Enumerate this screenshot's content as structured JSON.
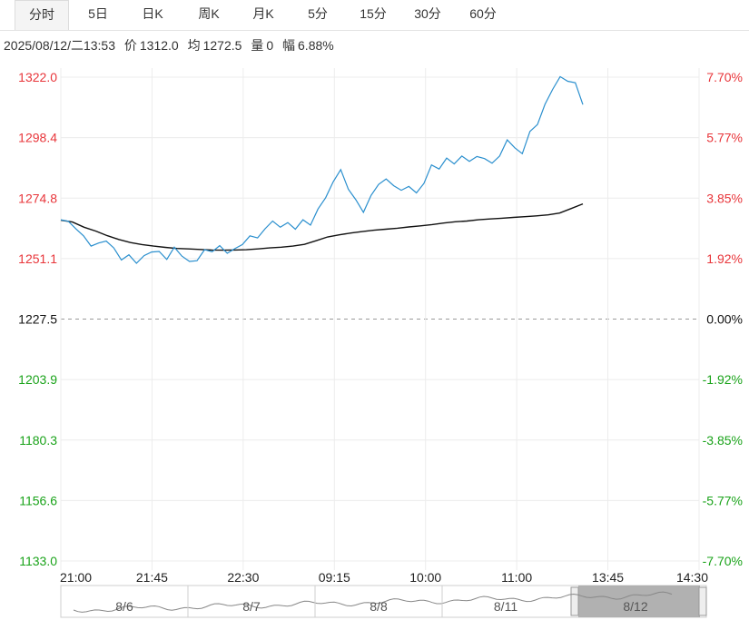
{
  "tabs": [
    {
      "label": "分时",
      "active": true
    },
    {
      "label": "5日"
    },
    {
      "label": "日K"
    },
    {
      "label": "周K"
    },
    {
      "label": "月K"
    },
    {
      "label": "5分"
    },
    {
      "label": "15分"
    },
    {
      "label": "30分"
    },
    {
      "label": "60分"
    }
  ],
  "info": {
    "datetime": "2025/08/12/二13:53",
    "price_label": "价",
    "price": "1312.0",
    "avg_label": "均",
    "avg": "1272.5",
    "volume_label": "量",
    "volume": "0",
    "amplitude_label": "幅",
    "amplitude": "6.88%"
  },
  "colors": {
    "up": "#e8353a",
    "down": "#1aa31a",
    "price_line": "#2a8fce",
    "avg_line": "#111111",
    "grid": "#ececec"
  },
  "chart_data": {
    "type": "line",
    "base_price": 1227.5,
    "ylim": [
      1133.0,
      1322.0
    ],
    "y_ticks": [
      "1322.0",
      "1298.4",
      "1274.8",
      "1251.1",
      "1227.5",
      "1203.9",
      "1180.3",
      "1156.6",
      "1133.0"
    ],
    "pct_ticks": [
      "7.70%",
      "5.77%",
      "3.85%",
      "1.92%",
      "0.00%",
      "-1.92%",
      "-3.85%",
      "-5.77%",
      "-7.70%"
    ],
    "x_ticks": [
      "21:00",
      "21:45",
      "22:30",
      "09:15",
      "10:00",
      "11:00",
      "13:45",
      "14:30"
    ],
    "price_series": [
      1266.3,
      1265.7,
      1262.7,
      1260.0,
      1256.0,
      1257.2,
      1258.0,
      1255.3,
      1250.6,
      1252.6,
      1249.3,
      1252.3,
      1253.7,
      1253.9,
      1250.8,
      1255.6,
      1252.1,
      1250.0,
      1250.3,
      1254.6,
      1253.8,
      1256.2,
      1253.2,
      1255.0,
      1256.6,
      1260.0,
      1259.2,
      1262.8,
      1265.8,
      1263.4,
      1265.2,
      1262.6,
      1266.3,
      1264.2,
      1270.5,
      1274.9,
      1281.1,
      1285.9,
      1278.2,
      1274.1,
      1269.2,
      1275.8,
      1280.1,
      1282.2,
      1279.6,
      1277.8,
      1279.3,
      1276.8,
      1280.5,
      1287.7,
      1286.1,
      1290.4,
      1288.1,
      1291.2,
      1289.1,
      1291.0,
      1290.2,
      1288.4,
      1291.2,
      1297.5,
      1294.4,
      1292.1,
      1300.8,
      1303.5,
      1311.4,
      1317.2,
      1322.2,
      1320.4,
      1319.8,
      1311.3
    ],
    "avg_series": [
      1266.1,
      1265.4,
      1263.4,
      1261.9,
      1260.1,
      1258.6,
      1257.4,
      1256.6,
      1256.0,
      1255.5,
      1255.1,
      1254.9,
      1254.7,
      1254.5,
      1254.4,
      1254.5,
      1254.6,
      1254.9,
      1255.3,
      1255.6,
      1256.0,
      1256.7,
      1258.1,
      1259.6,
      1260.4,
      1261.1,
      1261.7,
      1262.2,
      1262.6,
      1263.0,
      1263.5,
      1263.9,
      1264.4,
      1265.0,
      1265.5,
      1265.8,
      1266.3,
      1266.6,
      1266.9,
      1267.2,
      1267.5,
      1267.8,
      1268.2,
      1268.9,
      1270.7,
      1272.5
    ],
    "mini_dates": [
      "8/6",
      "8/7",
      "8/8",
      "8/11",
      "8/12"
    ]
  }
}
